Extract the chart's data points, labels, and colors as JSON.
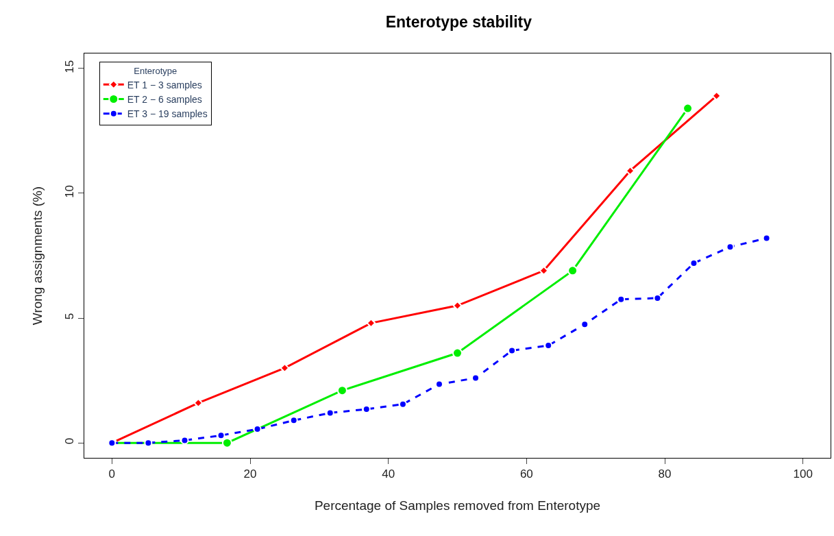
{
  "chart_data": {
    "type": "line",
    "title": "Enterotype stability",
    "xlabel": "Percentage of Samples removed from Enterotype",
    "ylabel": "Wrong assignments (%)",
    "legend_title": "Enterotype",
    "xlim": [
      -4,
      104
    ],
    "ylim": [
      -0.6,
      15.6
    ],
    "xticks": [
      0,
      20,
      40,
      60,
      80,
      100
    ],
    "yticks": [
      0,
      5,
      10,
      15
    ],
    "legend": "top left",
    "series": [
      {
        "name": "ET 1 − 3 samples",
        "color": "#ff0000",
        "marker": "diamond",
        "line_style": "solid",
        "x": [
          0,
          12.5,
          25,
          37.5,
          50,
          62.5,
          75,
          87.5
        ],
        "values": [
          0,
          1.6,
          3.0,
          4.8,
          5.5,
          6.9,
          10.9,
          13.9
        ]
      },
      {
        "name": "ET 2 − 6 samples",
        "color": "#00ee00",
        "marker": "circle",
        "line_style": "solid",
        "x": [
          0,
          16.67,
          33.33,
          50,
          66.67,
          83.33
        ],
        "values": [
          0,
          0,
          2.1,
          3.6,
          6.9,
          13.4
        ]
      },
      {
        "name": "ET 3 − 19 samples",
        "color": "#0000ff",
        "marker": "circle",
        "line_style": "dashed",
        "x": [
          0,
          5.26,
          10.53,
          15.79,
          21.05,
          26.32,
          31.58,
          36.84,
          42.11,
          47.37,
          52.63,
          57.89,
          63.16,
          68.42,
          73.68,
          78.95,
          84.21,
          89.47,
          94.74
        ],
        "values": [
          0,
          0,
          0.1,
          0.3,
          0.55,
          0.9,
          1.2,
          1.35,
          1.55,
          2.35,
          2.6,
          3.7,
          3.9,
          4.75,
          5.75,
          5.8,
          7.2,
          7.85,
          8.2
        ]
      }
    ]
  }
}
